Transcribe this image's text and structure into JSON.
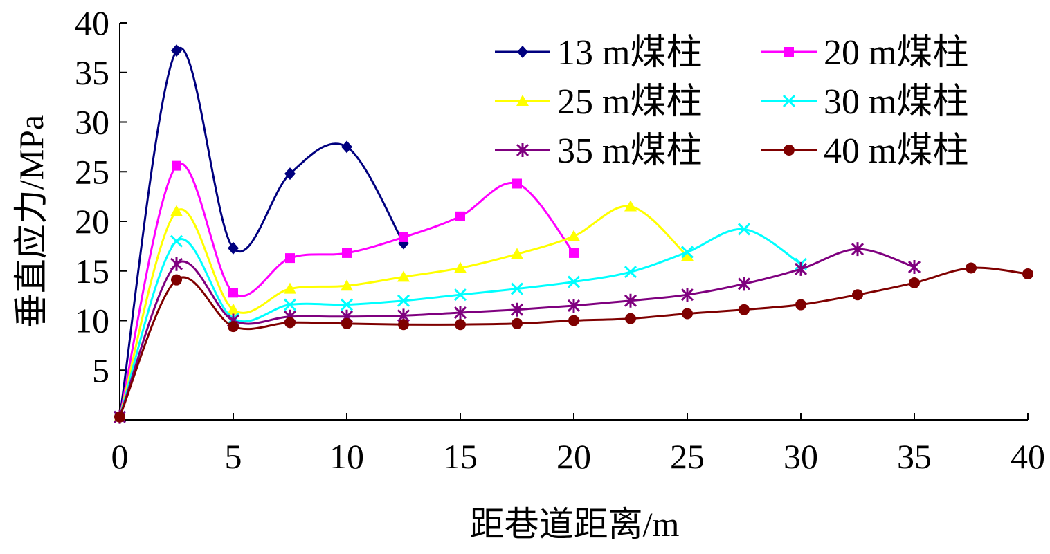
{
  "chart_data": {
    "type": "line",
    "title": "",
    "xlabel": "距巷道距离/m",
    "ylabel": "垂直应力/MPa",
    "xlim": [
      0,
      40
    ],
    "ylim": [
      0,
      40
    ],
    "xticks": [
      "0",
      "5",
      "10",
      "15",
      "20",
      "25",
      "30",
      "35",
      "40"
    ],
    "yticks": [
      "5",
      "10",
      "15",
      "20",
      "25",
      "30",
      "35",
      "40"
    ],
    "grid": false,
    "legend_position": "top-right",
    "series": [
      {
        "name": "13 m煤柱",
        "color": "#00007F",
        "marker": "diamond",
        "x": [
          0,
          2.5,
          5,
          7.5,
          10,
          12.5
        ],
        "y": [
          0.3,
          37.2,
          17.3,
          24.8,
          27.5,
          17.8
        ]
      },
      {
        "name": "20 m煤柱",
        "color": "#FF00FF",
        "marker": "square",
        "x": [
          0,
          2.5,
          5,
          7.5,
          10,
          12.5,
          15,
          17.5,
          20
        ],
        "y": [
          0.3,
          25.6,
          12.8,
          16.3,
          16.8,
          18.4,
          20.5,
          23.8,
          16.8
        ]
      },
      {
        "name": "25 m煤柱",
        "color": "#FFFF00",
        "marker": "triangle",
        "x": [
          0,
          2.5,
          5,
          7.5,
          10,
          12.5,
          15,
          17.5,
          20,
          22.5,
          25
        ],
        "y": [
          0.3,
          21.0,
          11.1,
          13.2,
          13.5,
          14.4,
          15.3,
          16.7,
          18.5,
          21.5,
          16.5
        ]
      },
      {
        "name": "30 m煤柱",
        "color": "#00FFFF",
        "marker": "x",
        "x": [
          0,
          2.5,
          5,
          7.5,
          10,
          12.5,
          15,
          17.5,
          20,
          22.5,
          25,
          27.5,
          30
        ],
        "y": [
          0.3,
          18.0,
          10.2,
          11.6,
          11.6,
          12.0,
          12.6,
          13.2,
          13.9,
          14.9,
          16.9,
          19.2,
          15.7
        ]
      },
      {
        "name": "35 m煤柱",
        "color": "#7F007F",
        "marker": "asterisk",
        "x": [
          0,
          2.5,
          5,
          7.5,
          10,
          12.5,
          15,
          17.5,
          20,
          22.5,
          25,
          27.5,
          30,
          32.5,
          35
        ],
        "y": [
          0.3,
          15.7,
          10.0,
          10.4,
          10.4,
          10.5,
          10.8,
          11.1,
          11.5,
          12.0,
          12.6,
          13.7,
          15.2,
          17.2,
          15.4
        ]
      },
      {
        "name": "40 m煤柱",
        "color": "#7F0000",
        "marker": "circle",
        "x": [
          0,
          2.5,
          5,
          7.5,
          10,
          12.5,
          15,
          17.5,
          20,
          22.5,
          25,
          27.5,
          30,
          32.5,
          35,
          37.5,
          40
        ],
        "y": [
          0.3,
          14.1,
          9.4,
          9.8,
          9.7,
          9.6,
          9.6,
          9.7,
          10.0,
          10.2,
          10.7,
          11.1,
          11.6,
          12.6,
          13.8,
          15.3,
          14.7
        ]
      }
    ]
  }
}
